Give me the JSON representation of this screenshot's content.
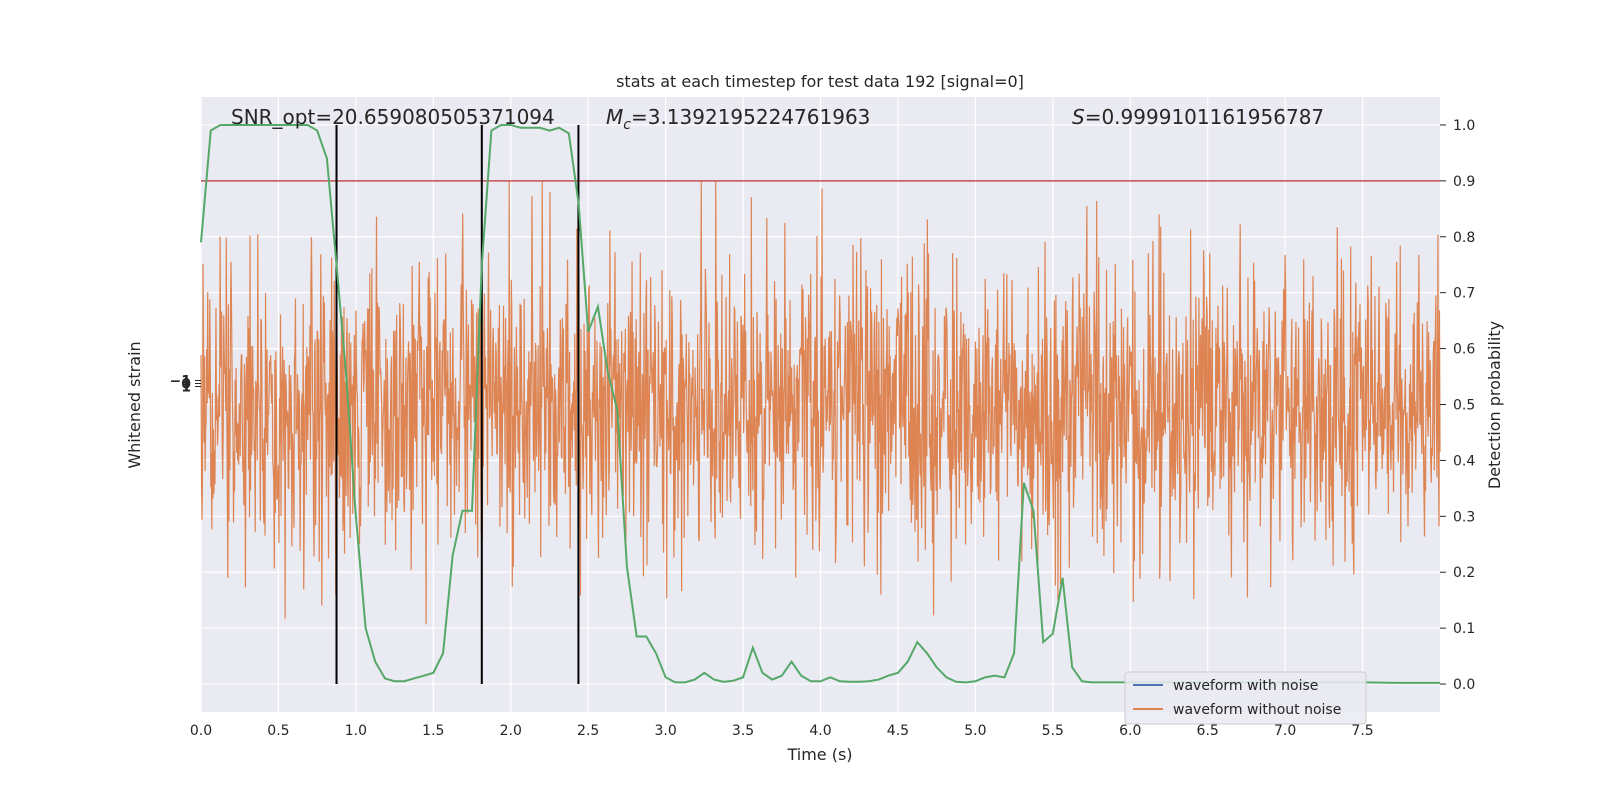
{
  "chart_data": {
    "type": "line",
    "title": "stats at each timestep for test data 192 [signal=0]",
    "xlabel": "Time (s)",
    "ylabel_left": "Whitened strain",
    "ylabel_right": "Detection probability",
    "xlim": [
      0,
      8.0
    ],
    "ylim_right": [
      -0.05,
      1.05
    ],
    "x_ticks": [
      0.0,
      0.5,
      1.0,
      1.5,
      2.0,
      2.5,
      3.0,
      3.5,
      4.0,
      4.5,
      5.0,
      5.5,
      6.0,
      6.5,
      7.0,
      7.5
    ],
    "x_tick_labels": [
      "0.0",
      "0.5",
      "1.0",
      "1.5",
      "2.0",
      "2.5",
      "3.0",
      "3.5",
      "4.0",
      "4.5",
      "5.0",
      "5.5",
      "6.0",
      "6.5",
      "7.0",
      "7.5"
    ],
    "y_right_ticks": [
      0.0,
      0.1,
      0.2,
      0.3,
      0.4,
      0.5,
      0.6,
      0.7,
      0.8,
      0.9,
      1.0
    ],
    "y_right_tick_labels": [
      "0.0",
      "0.1",
      "0.2",
      "0.3",
      "0.4",
      "0.5",
      "0.6",
      "0.7",
      "0.8",
      "0.9",
      "1.0"
    ],
    "grid": true,
    "legend_position": "bottom-right",
    "annotations": {
      "snr": "SNR_opt=20.659080505371094",
      "mc_symbol": "M",
      "mc_sub": "c",
      "mc_value": "=3.1392195224761963",
      "s_symbol": "S",
      "s_value": "=0.9999101161956787"
    },
    "threshold": 0.9,
    "vertical_lines_x": [
      0.875,
      1.813,
      2.437
    ],
    "series": [
      {
        "name": "waveform with noise",
        "color": "#4c72b0",
        "values": []
      },
      {
        "name": "waveform without noise",
        "color": "#dd8452"
      },
      {
        "color": "#55a868",
        "x": [
          0.0,
          0.063,
          0.125,
          0.188,
          0.25,
          0.313,
          0.375,
          0.438,
          0.5,
          0.563,
          0.625,
          0.688,
          0.75,
          0.813,
          0.875,
          0.938,
          1.0,
          1.063,
          1.125,
          1.188,
          1.25,
          1.313,
          1.375,
          1.438,
          1.5,
          1.563,
          1.625,
          1.688,
          1.75,
          1.813,
          1.875,
          1.938,
          2.0,
          2.063,
          2.125,
          2.188,
          2.25,
          2.313,
          2.375,
          2.438,
          2.5,
          2.563,
          2.625,
          2.688,
          2.75,
          2.813,
          2.875,
          2.938,
          3.0,
          3.063,
          3.125,
          3.188,
          3.25,
          3.313,
          3.375,
          3.438,
          3.5,
          3.563,
          3.625,
          3.688,
          3.75,
          3.813,
          3.875,
          3.938,
          4.0,
          4.063,
          4.125,
          4.188,
          4.25,
          4.313,
          4.375,
          4.438,
          4.5,
          4.563,
          4.625,
          4.688,
          4.75,
          4.813,
          4.875,
          4.938,
          5.0,
          5.063,
          5.125,
          5.188,
          5.25,
          5.313,
          5.375,
          5.438,
          5.5,
          5.563,
          5.625,
          5.688,
          5.75,
          5.813,
          5.875,
          5.938,
          6.0,
          6.5,
          7.0,
          7.25,
          7.5,
          7.75,
          8.0
        ],
        "values": [
          0.79,
          0.99,
          1.0,
          1.0,
          1.0,
          1.0,
          1.0,
          1.0,
          1.0,
          1.0,
          1.0,
          1.0,
          0.99,
          0.94,
          0.75,
          0.55,
          0.3,
          0.1,
          0.04,
          0.01,
          0.005,
          0.005,
          0.01,
          0.015,
          0.02,
          0.055,
          0.23,
          0.31,
          0.31,
          0.75,
          0.99,
          1.0,
          1.0,
          0.995,
          0.995,
          0.995,
          0.99,
          0.995,
          0.985,
          0.86,
          0.63,
          0.675,
          0.56,
          0.49,
          0.21,
          0.085,
          0.085,
          0.055,
          0.012,
          0.003,
          0.003,
          0.008,
          0.02,
          0.008,
          0.004,
          0.006,
          0.012,
          0.065,
          0.02,
          0.008,
          0.015,
          0.04,
          0.015,
          0.005,
          0.005,
          0.012,
          0.005,
          0.004,
          0.004,
          0.005,
          0.008,
          0.015,
          0.02,
          0.04,
          0.075,
          0.055,
          0.03,
          0.012,
          0.004,
          0.003,
          0.005,
          0.012,
          0.015,
          0.012,
          0.055,
          0.36,
          0.31,
          0.075,
          0.09,
          0.19,
          0.03,
          0.005,
          0.003,
          0.003,
          0.003,
          0.003,
          0.003,
          0.003,
          0.003,
          0.003,
          0.003,
          0.002,
          0.002
        ]
      }
    ],
    "left_tick_labels": [
      "−1",
      "0",
      "1"
    ]
  }
}
